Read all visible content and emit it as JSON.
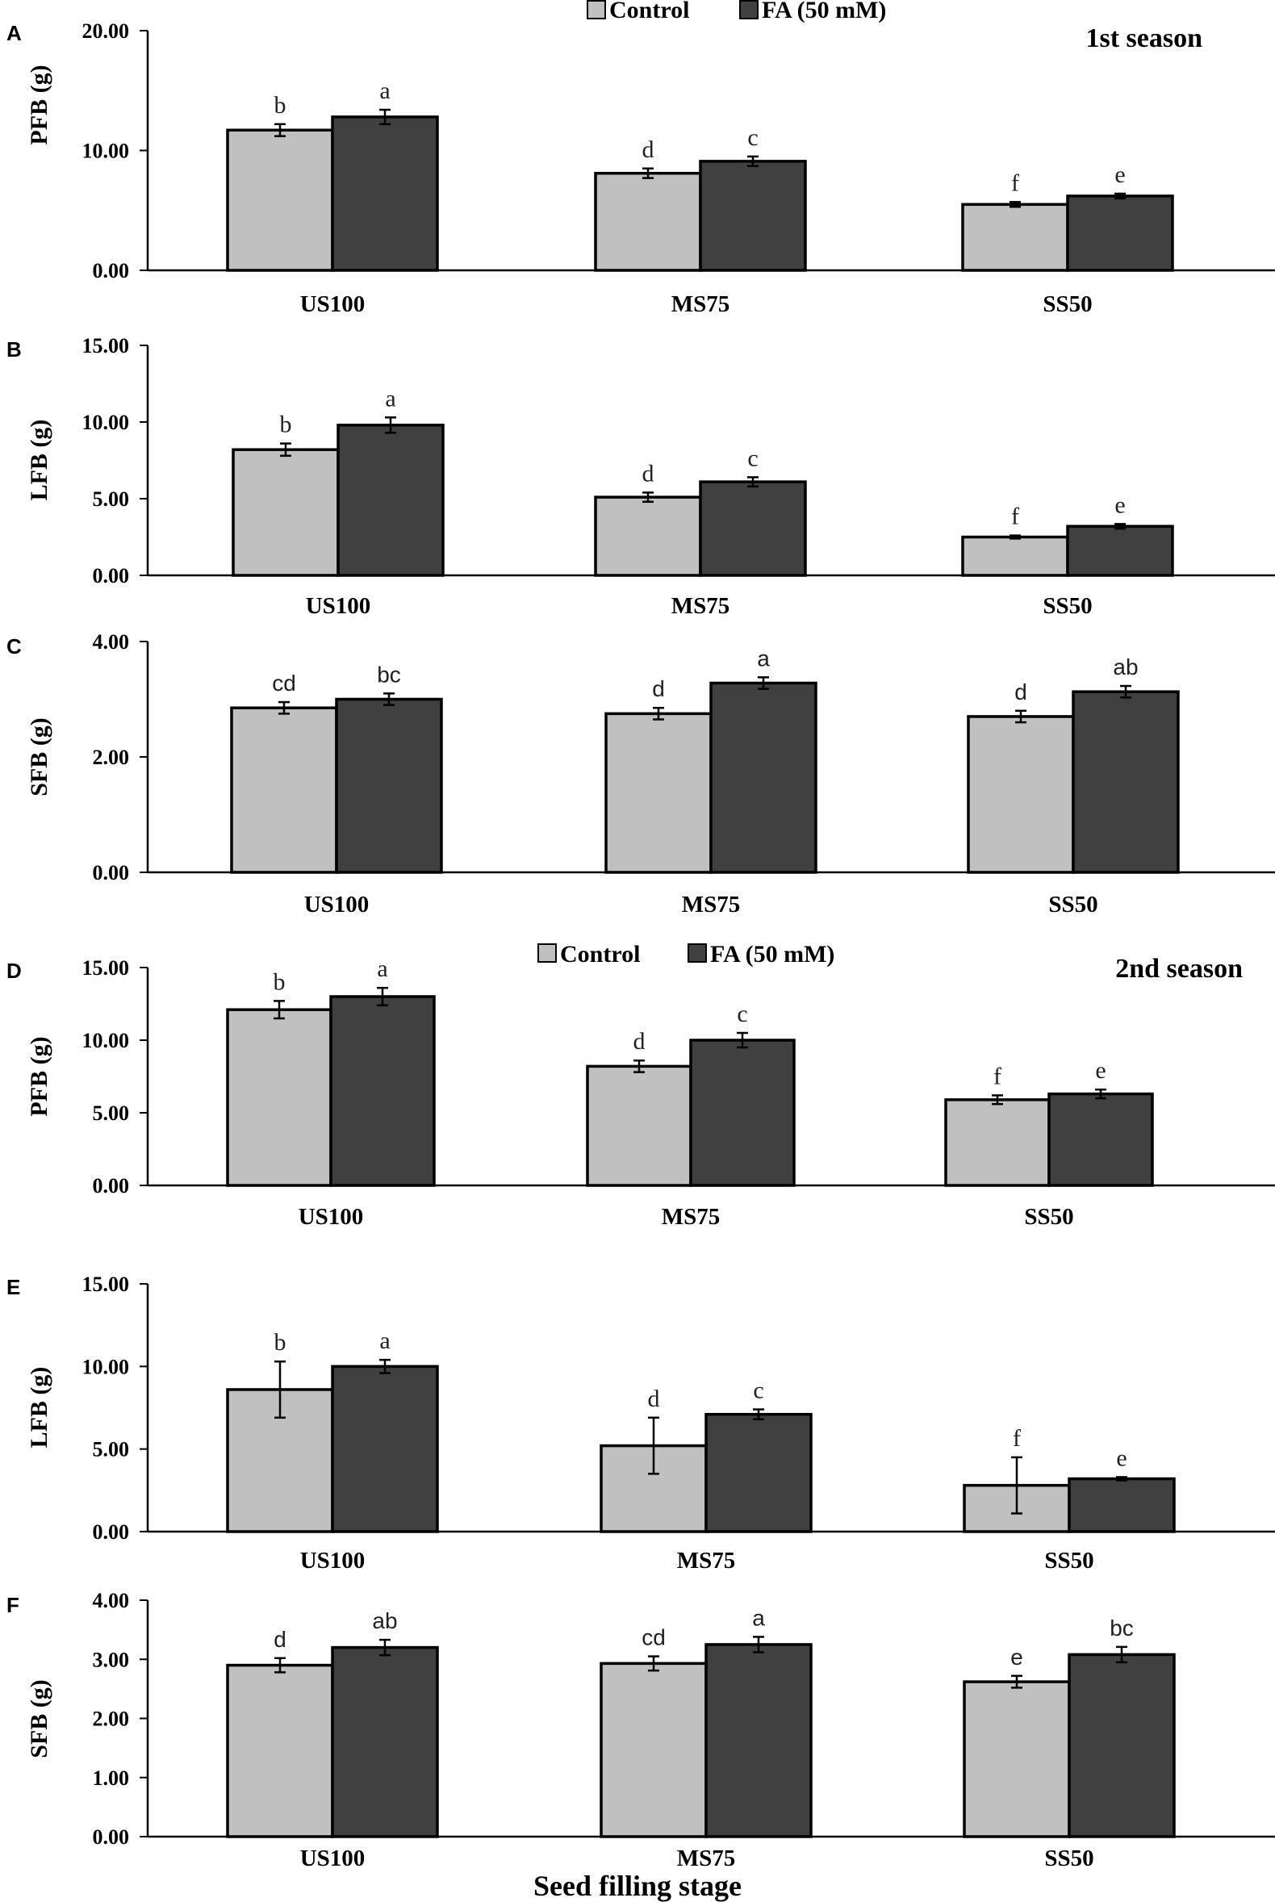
{
  "legend": {
    "control_label": "Control",
    "fa_label": "FA (50 mM)",
    "control_color": "#c0c0c0",
    "fa_color": "#404040"
  },
  "seasons": {
    "first": "1st season",
    "second": "2nd season"
  },
  "x_axis_title": "Seed filling stage",
  "chart_data": [
    {
      "type": "bar",
      "panel": "A",
      "title": "",
      "ylabel": "PFB (g)",
      "xlabel": "",
      "categories": [
        "US100",
        "MS75",
        "SS50"
      ],
      "ylim": [
        0,
        20
      ],
      "yticks": [
        "0.00",
        "10.00",
        "20.00"
      ],
      "tick_values": [
        0,
        10,
        20
      ],
      "series": [
        {
          "name": "Control",
          "values": [
            11.7,
            8.1,
            5.5
          ],
          "errors": [
            0.5,
            0.4,
            0.2
          ],
          "letters": [
            "b",
            "d",
            "f"
          ]
        },
        {
          "name": "FA (50 mM)",
          "values": [
            12.8,
            9.1,
            6.2
          ],
          "errors": [
            0.6,
            0.4,
            0.2
          ],
          "letters": [
            "a",
            "c",
            "e"
          ]
        }
      ]
    },
    {
      "type": "bar",
      "panel": "B",
      "title": "",
      "ylabel": "LFB (g)",
      "xlabel": "",
      "categories": [
        "US100",
        "MS75",
        "SS50"
      ],
      "ylim": [
        0,
        15
      ],
      "yticks": [
        "0.00",
        "5.00",
        "10.00",
        "15.00"
      ],
      "tick_values": [
        0,
        5,
        10,
        15
      ],
      "series": [
        {
          "name": "Control",
          "values": [
            8.2,
            5.1,
            2.5
          ],
          "errors": [
            0.4,
            0.3,
            0.1
          ],
          "letters": [
            "b",
            "d",
            "f"
          ]
        },
        {
          "name": "FA (50 mM)",
          "values": [
            9.8,
            6.1,
            3.2
          ],
          "errors": [
            0.5,
            0.3,
            0.15
          ],
          "letters": [
            "a",
            "c",
            "e"
          ]
        }
      ]
    },
    {
      "type": "bar",
      "panel": "C",
      "title": "",
      "ylabel": "SFB (g)",
      "xlabel": "",
      "categories": [
        "US100",
        "MS75",
        "SS50"
      ],
      "ylim": [
        0,
        4
      ],
      "yticks": [
        "0.00",
        "2.00",
        "4.00"
      ],
      "tick_values": [
        0,
        2,
        4
      ],
      "series": [
        {
          "name": "Control",
          "values": [
            2.85,
            2.75,
            2.7
          ],
          "errors": [
            0.1,
            0.1,
            0.1
          ],
          "letters": [
            "cd",
            "d",
            "d"
          ]
        },
        {
          "name": "FA (50 mM)",
          "values": [
            3.0,
            3.28,
            3.13
          ],
          "errors": [
            0.1,
            0.1,
            0.1
          ],
          "letters": [
            "bc",
            "a",
            "ab"
          ]
        }
      ]
    },
    {
      "type": "bar",
      "panel": "D",
      "title": "",
      "ylabel": "PFB (g)",
      "xlabel": "",
      "categories": [
        "US100",
        "MS75",
        "SS50"
      ],
      "ylim": [
        0,
        15
      ],
      "yticks": [
        "0.00",
        "5.00",
        "10.00",
        "15.00"
      ],
      "tick_values": [
        0,
        5,
        10,
        15
      ],
      "series": [
        {
          "name": "Control",
          "values": [
            12.1,
            8.2,
            5.9
          ],
          "errors": [
            0.6,
            0.4,
            0.3
          ],
          "letters": [
            "b",
            "d",
            "f"
          ]
        },
        {
          "name": "FA (50 mM)",
          "values": [
            13.0,
            10.0,
            6.3
          ],
          "errors": [
            0.6,
            0.5,
            0.3
          ],
          "letters": [
            "a",
            "c",
            "e"
          ]
        }
      ]
    },
    {
      "type": "bar",
      "panel": "E",
      "title": "",
      "ylabel": "LFB (g)",
      "xlabel": "",
      "categories": [
        "US100",
        "MS75",
        "SS50"
      ],
      "ylim": [
        0,
        15
      ],
      "yticks": [
        "0.00",
        "5.00",
        "10.00",
        "15.00"
      ],
      "tick_values": [
        0,
        5,
        10,
        15
      ],
      "series": [
        {
          "name": "Control",
          "values": [
            8.6,
            5.2,
            2.8
          ],
          "errors": [
            1.7,
            1.7,
            1.7
          ],
          "letters": [
            "b",
            "d",
            "f"
          ]
        },
        {
          "name": "FA (50 mM)",
          "values": [
            10.0,
            7.1,
            3.2
          ],
          "errors": [
            0.4,
            0.3,
            0.1
          ],
          "letters": [
            "a",
            "c",
            "e"
          ]
        }
      ]
    },
    {
      "type": "bar",
      "panel": "F",
      "title": "",
      "ylabel": "SFB (g)",
      "xlabel": "Seed filling stage",
      "categories": [
        "US100",
        "MS75",
        "SS50"
      ],
      "ylim": [
        0,
        4
      ],
      "yticks": [
        "0.00",
        "1.00",
        "2.00",
        "3.00",
        "4.00"
      ],
      "tick_values": [
        0,
        1,
        2,
        3,
        4
      ],
      "series": [
        {
          "name": "Control",
          "values": [
            2.9,
            2.93,
            2.62
          ],
          "errors": [
            0.12,
            0.12,
            0.1
          ],
          "letters": [
            "d",
            "cd",
            "e"
          ]
        },
        {
          "name": "FA (50 mM)",
          "values": [
            3.2,
            3.25,
            3.08
          ],
          "errors": [
            0.13,
            0.13,
            0.13
          ],
          "letters": [
            "ab",
            "a",
            "bc"
          ]
        }
      ]
    }
  ]
}
